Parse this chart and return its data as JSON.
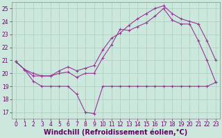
{
  "bg_color": "#cce8dd",
  "grid_color": "#aaccbb",
  "line_color": "#993399",
  "xlim": [
    -0.5,
    23.5
  ],
  "ylim": [
    16.5,
    25.5
  ],
  "x_ticks": [
    0,
    1,
    2,
    3,
    4,
    5,
    6,
    7,
    8,
    9,
    10,
    11,
    12,
    13,
    14,
    15,
    16,
    17,
    18,
    19,
    20,
    21,
    22,
    23
  ],
  "y_ticks": [
    17,
    18,
    19,
    20,
    21,
    22,
    23,
    24,
    25
  ],
  "line1_x": [
    0,
    1,
    2,
    3,
    4,
    5,
    6,
    7,
    8,
    9,
    10,
    11,
    12,
    13,
    14,
    15,
    16,
    17,
    18,
    19,
    20,
    21,
    22,
    23
  ],
  "line1_y": [
    20.9,
    20.3,
    19.4,
    19.0,
    19.0,
    19.0,
    19.0,
    18.4,
    17.0,
    16.9,
    19.0,
    19.0,
    19.0,
    19.0,
    19.0,
    19.0,
    19.0,
    19.0,
    19.0,
    19.0,
    19.0,
    19.0,
    19.0,
    19.3
  ],
  "line2_x": [
    0,
    1,
    2,
    3,
    4,
    5,
    6,
    7,
    8,
    9,
    10,
    11,
    12,
    13,
    14,
    15,
    16,
    17,
    18,
    19,
    20,
    21,
    22,
    23
  ],
  "line2_y": [
    20.9,
    20.3,
    19.8,
    19.8,
    19.8,
    20.0,
    20.1,
    19.7,
    20.0,
    20.0,
    21.2,
    22.2,
    23.4,
    23.3,
    23.6,
    23.9,
    24.4,
    25.0,
    24.1,
    23.8,
    23.8,
    22.5,
    21.0,
    19.3
  ],
  "line3_x": [
    0,
    1,
    2,
    3,
    4,
    5,
    6,
    7,
    8,
    9,
    10,
    11,
    12,
    13,
    14,
    15,
    16,
    17,
    18,
    19,
    20,
    21,
    22,
    23
  ],
  "line3_y": [
    20.9,
    20.3,
    20.0,
    19.8,
    19.8,
    20.2,
    20.5,
    20.2,
    20.4,
    20.6,
    21.8,
    22.7,
    23.1,
    23.7,
    24.2,
    24.6,
    25.0,
    25.2,
    24.6,
    24.2,
    24.0,
    23.8,
    22.5,
    21.0
  ],
  "xlabel": "Windchill (Refroidissement éolien,°C)",
  "tick_fontsize": 5.5,
  "xlabel_fontsize": 7.0
}
